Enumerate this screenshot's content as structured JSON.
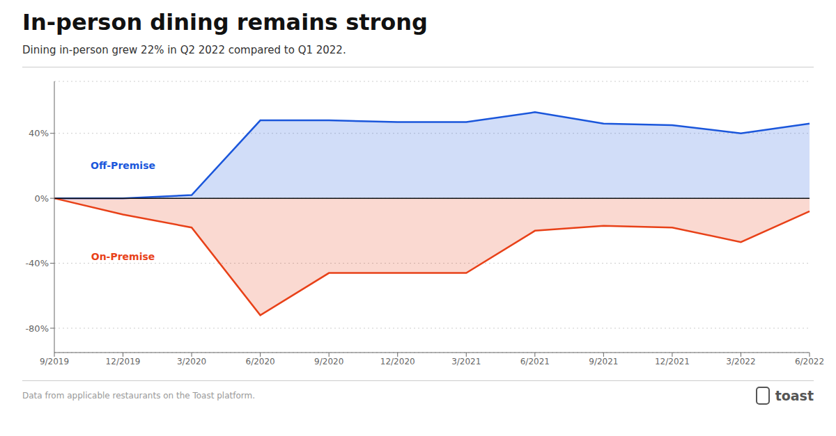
{
  "chart_data": {
    "type": "area",
    "title": "In-person dining remains strong",
    "subtitle": "Dining in-person grew 22% in Q2 2022 compared to Q1 2022.",
    "annotations": [
      "Data from applicable restaurants on the Toast platform.",
      "toast"
    ],
    "categories": [
      "9/2019",
      "12/2019",
      "3/2020",
      "6/2020",
      "9/2020",
      "12/2020",
      "3/2021",
      "6/2021",
      "9/2021",
      "12/2021",
      "3/2022",
      "6/2022"
    ],
    "series": [
      {
        "name": "Off-Premise",
        "color": "#1a56db",
        "values": [
          0,
          0,
          2,
          48,
          48,
          47,
          47,
          53,
          46,
          45,
          40,
          46
        ]
      },
      {
        "name": "On-Premise",
        "color": "#e84118",
        "values": [
          0,
          -10,
          -18,
          -72,
          -46,
          -46,
          -46,
          -20,
          -17,
          -18,
          -27,
          -8
        ]
      }
    ],
    "ylim": [
      -95,
      72
    ],
    "yticks": [
      {
        "value": -80,
        "label": "-80%"
      },
      {
        "value": -40,
        "label": "-40%"
      },
      {
        "value": 0,
        "label": "0%"
      },
      {
        "value": 40,
        "label": "40%"
      }
    ],
    "grid": true
  }
}
